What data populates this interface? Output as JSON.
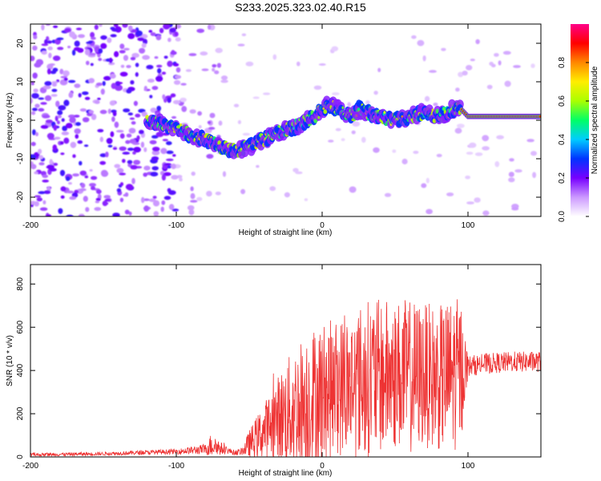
{
  "title": "S233.2025.323.02.40.R15",
  "chart_data": [
    {
      "type": "heatmap",
      "panel": "spectrogram",
      "xlabel": "Height of straight line (km)",
      "ylabel": "Frequency (Hz)",
      "xlim": [
        -200,
        150
      ],
      "ylim": [
        -25,
        25
      ],
      "xticks": [
        -200,
        -100,
        0,
        100
      ],
      "yticks": [
        -20,
        -10,
        0,
        10,
        20
      ],
      "ridge": {
        "x": [
          -120,
          -110,
          -100,
          -90,
          -80,
          -70,
          -60,
          -50,
          -40,
          -30,
          -20,
          -15,
          -10,
          -5,
          0,
          5,
          10,
          15,
          20,
          25,
          30,
          40,
          50,
          60,
          70,
          80,
          90,
          95,
          100,
          110,
          120,
          130,
          140,
          150
        ],
        "y": [
          0,
          -1,
          -2,
          -4,
          -5,
          -7,
          -8,
          -7,
          -5,
          -3,
          -2,
          -1,
          0,
          1,
          3,
          4,
          3,
          2,
          1,
          3,
          2,
          1,
          0,
          1,
          2,
          1,
          3,
          3,
          1,
          1,
          1,
          1,
          1,
          1
        ]
      },
      "colorbar": {
        "label": "Normalized spectral amplitude",
        "range": [
          0.0,
          1.0
        ],
        "ticks": [
          0.0,
          0.2,
          0.4,
          0.6,
          0.8
        ],
        "tick_labels": [
          "0.0",
          "0.2",
          "0.4",
          "0.6",
          "0.8"
        ],
        "colors": [
          "#ffffff",
          "#cc99ff",
          "#7700ff",
          "#0033ff",
          "#00ccff",
          "#00ff66",
          "#aaff00",
          "#ffee00",
          "#ff8800",
          "#ff0000",
          "#ff0088"
        ]
      }
    },
    {
      "type": "line",
      "panel": "snr",
      "xlabel": "Height of straight line (km)",
      "ylabel": "SNR (10 * v/v)",
      "xlim": [
        -200,
        150
      ],
      "ylim": [
        0,
        890
      ],
      "xticks": [
        -200,
        -100,
        0,
        100
      ],
      "yticks": [
        0,
        200,
        400,
        600,
        800
      ],
      "series": [
        {
          "name": "SNR",
          "color": "#ee3333",
          "envelope_x": [
            -200,
            -150,
            -100,
            -80,
            -75,
            -70,
            -65,
            -60,
            -55,
            -50,
            -40,
            -30,
            -20,
            -10,
            0,
            10,
            20,
            30,
            40,
            50,
            60,
            70,
            80,
            90,
            95,
            100,
            110,
            120,
            130,
            140,
            150
          ],
          "baseline": [
            10,
            15,
            25,
            35,
            60,
            40,
            30,
            20,
            25,
            60,
            120,
            180,
            220,
            260,
            290,
            320,
            340,
            360,
            370,
            380,
            370,
            380,
            360,
            380,
            390,
            420,
            430,
            435,
            440,
            440,
            440
          ],
          "spread": [
            10,
            10,
            15,
            30,
            80,
            40,
            20,
            15,
            20,
            80,
            160,
            250,
            350,
            420,
            420,
            400,
            420,
            460,
            450,
            440,
            450,
            420,
            420,
            450,
            430,
            60,
            60,
            60,
            60,
            60,
            60
          ]
        }
      ]
    }
  ]
}
